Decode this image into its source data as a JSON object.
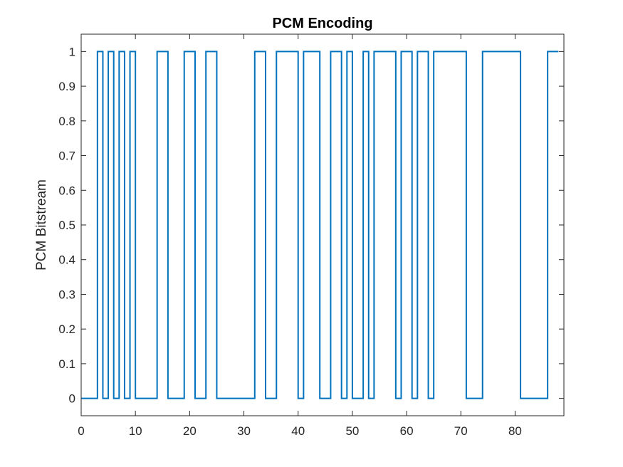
{
  "chart_data": {
    "type": "line",
    "step": true,
    "title": "PCM Encoding",
    "xlabel": "",
    "ylabel": "PCM Bitstream",
    "xlim": [
      0,
      89
    ],
    "ylim": [
      -0.05,
      1.05
    ],
    "xticks": [
      0,
      10,
      20,
      30,
      40,
      50,
      60,
      70,
      80
    ],
    "yticks": [
      0,
      0.1,
      0.2,
      0.3,
      0.4,
      0.5,
      0.6,
      0.7,
      0.8,
      0.9,
      1
    ],
    "grid": false,
    "box": true,
    "colors": {
      "line": "#0072BD",
      "axes": "#262626"
    },
    "series": [
      {
        "bits": [
          0,
          0,
          0,
          1,
          0,
          1,
          0,
          1,
          0,
          1,
          0,
          0,
          0,
          0,
          1,
          1,
          0,
          0,
          0,
          1,
          1,
          0,
          0,
          1,
          1,
          0,
          0,
          0,
          0,
          0,
          0,
          0,
          1,
          1,
          0,
          0,
          1,
          1,
          1,
          1,
          0,
          1,
          1,
          1,
          0,
          0,
          1,
          1,
          0,
          1,
          0,
          0,
          1,
          0,
          1,
          1,
          1,
          1,
          0,
          1,
          1,
          0,
          1,
          1,
          0,
          1,
          1,
          1,
          1,
          1,
          1,
          0,
          0,
          0,
          1,
          1,
          1,
          1,
          1,
          1,
          1,
          0,
          0,
          0,
          0,
          0,
          1,
          1
        ]
      }
    ]
  }
}
